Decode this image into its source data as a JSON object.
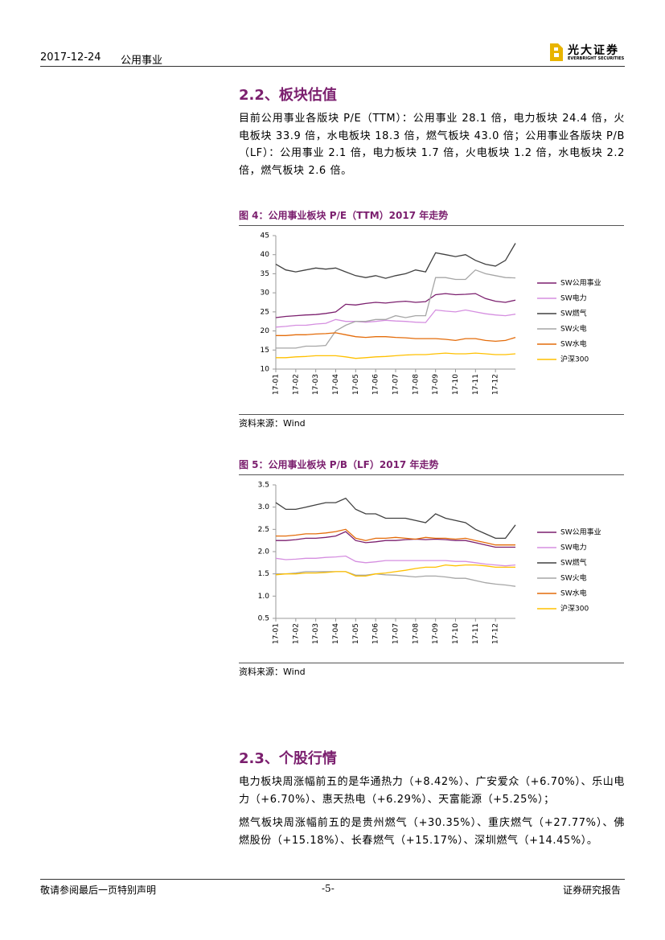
{
  "header": {
    "date": "2017-12-24",
    "sector": "公用事业",
    "logo_name": "光大证券",
    "logo_en": "EVERBRIGHT SECURITIES"
  },
  "section_2_2": {
    "title": "2.2、板块估值",
    "paragraph": "目前公用事业各版块 P/E（TTM）：公用事业 28.1 倍，电力板块 24.4 倍，火电板块 33.9 倍，水电板块 18.3 倍，燃气板块 43.0 倍；公用事业各版块 P/B（LF）：公用事业 2.1 倍，电力板块 1.7 倍，火电板块 1.2 倍，水电板块 2.2 倍，燃气板块 2.6 倍。"
  },
  "figures": [
    {
      "caption": "图 4：公用事业板块 P/E（TTM）2017 年走势",
      "source": "资料来源：Wind"
    },
    {
      "caption": "图 5：公用事业板块 P/B（LF）2017 年走势",
      "source": "资料来源：Wind"
    }
  ],
  "chart_data": [
    {
      "type": "line",
      "categories": [
        "17-01",
        null,
        "17-02",
        null,
        "17-03",
        null,
        "17-04",
        null,
        "17-05",
        null,
        "17-06",
        null,
        "17-07",
        null,
        "17-08",
        null,
        "17-09",
        null,
        "17-10",
        null,
        "17-11",
        null,
        "17-12",
        null,
        null
      ],
      "ylim": [
        10,
        45
      ],
      "yticks": [
        10,
        15,
        20,
        25,
        30,
        35,
        40,
        45
      ],
      "series": [
        {
          "name": "SW公用事业",
          "color": "#7b1f6e",
          "values": [
            23.5,
            23.8,
            24,
            24.2,
            24.3,
            24.6,
            25,
            27,
            26.8,
            27.2,
            27.5,
            27.3,
            27.6,
            27.8,
            27.5,
            27.7,
            29.5,
            29.8,
            29.5,
            29.6,
            29.8,
            28.5,
            27.8,
            27.5,
            28.1
          ]
        },
        {
          "name": "SW电力",
          "color": "#d58fe0",
          "values": [
            21,
            21.2,
            21.5,
            21.5,
            21.8,
            22,
            23,
            22.5,
            22.5,
            22.3,
            22.5,
            22.8,
            22.6,
            22.5,
            22.3,
            22.2,
            25.5,
            25.2,
            25,
            25.5,
            25,
            24.5,
            24.2,
            24,
            24.4
          ]
        },
        {
          "name": "SW燃气",
          "color": "#404040",
          "values": [
            37.5,
            36,
            35.5,
            36,
            36.5,
            36.2,
            36.5,
            35.5,
            34.5,
            34,
            34.5,
            33.8,
            34.5,
            35,
            36,
            35.5,
            40.5,
            40,
            39.5,
            40,
            38.5,
            37.5,
            37,
            38.5,
            43
          ]
        },
        {
          "name": "SW火电",
          "color": "#a6a6a6",
          "values": [
            15.5,
            15.5,
            15.5,
            16,
            16,
            16.2,
            20,
            21.5,
            22.5,
            22.5,
            23,
            23,
            24,
            23.5,
            24,
            24,
            34,
            34,
            33.5,
            33.5,
            36,
            35,
            34.5,
            34,
            33.9
          ]
        },
        {
          "name": "SW水电",
          "color": "#e46c0a",
          "values": [
            18.8,
            18.8,
            19,
            19,
            19.2,
            19.3,
            19.5,
            19,
            18.5,
            18.3,
            18.5,
            18.5,
            18.3,
            18.2,
            18,
            18,
            18,
            17.8,
            17.5,
            18,
            18,
            17.5,
            17.3,
            17.5,
            18.3
          ]
        },
        {
          "name": "沪深300",
          "color": "#ffc000",
          "values": [
            13,
            13,
            13.2,
            13.3,
            13.5,
            13.5,
            13.5,
            13.2,
            12.8,
            13,
            13.2,
            13.3,
            13.5,
            13.7,
            13.8,
            13.8,
            14,
            14.2,
            14,
            14,
            14.2,
            14,
            13.8,
            13.8,
            14
          ]
        }
      ]
    },
    {
      "type": "line",
      "categories": [
        "17-01",
        null,
        "17-02",
        null,
        "17-03",
        null,
        "17-04",
        null,
        "17-05",
        null,
        "17-06",
        null,
        "17-07",
        null,
        "17-08",
        null,
        "17-09",
        null,
        "17-10",
        null,
        "17-11",
        null,
        "17-12",
        null,
        null
      ],
      "ylim": [
        0.5,
        3.5
      ],
      "yticks": [
        0.5,
        {
          "value": 1,
          "label": "1.0"
        },
        1.5,
        {
          "value": 2,
          "label": "2.0"
        },
        2.5,
        {
          "value": 3,
          "label": "3.0"
        },
        3.5
      ],
      "series": [
        {
          "name": "SW公用事业",
          "color": "#7b1f6e",
          "values": [
            2.25,
            2.25,
            2.27,
            2.3,
            2.3,
            2.32,
            2.35,
            2.45,
            2.25,
            2.2,
            2.22,
            2.25,
            2.25,
            2.27,
            2.28,
            2.27,
            2.28,
            2.27,
            2.25,
            2.25,
            2.2,
            2.15,
            2.1,
            2.1,
            2.1
          ]
        },
        {
          "name": "SW电力",
          "color": "#d58fe0",
          "values": [
            1.85,
            1.82,
            1.83,
            1.85,
            1.85,
            1.87,
            1.88,
            1.9,
            1.78,
            1.75,
            1.77,
            1.8,
            1.8,
            1.8,
            1.8,
            1.8,
            1.8,
            1.8,
            1.78,
            1.78,
            1.75,
            1.72,
            1.7,
            1.68,
            1.7
          ]
        },
        {
          "name": "SW燃气",
          "color": "#404040",
          "values": [
            3.1,
            2.95,
            2.95,
            3.0,
            3.05,
            3.1,
            3.1,
            3.2,
            2.95,
            2.85,
            2.85,
            2.75,
            2.75,
            2.75,
            2.7,
            2.65,
            2.85,
            2.75,
            2.7,
            2.65,
            2.5,
            2.4,
            2.3,
            2.3,
            2.6
          ]
        },
        {
          "name": "SW火电",
          "color": "#a6a6a6",
          "values": [
            1.5,
            1.5,
            1.52,
            1.55,
            1.55,
            1.55,
            1.55,
            1.55,
            1.47,
            1.47,
            1.5,
            1.48,
            1.47,
            1.45,
            1.43,
            1.45,
            1.45,
            1.43,
            1.4,
            1.4,
            1.35,
            1.3,
            1.27,
            1.25,
            1.22
          ]
        },
        {
          "name": "SW水电",
          "color": "#e46c0a",
          "values": [
            2.35,
            2.35,
            2.37,
            2.4,
            2.4,
            2.42,
            2.45,
            2.5,
            2.3,
            2.25,
            2.3,
            2.3,
            2.32,
            2.3,
            2.28,
            2.32,
            2.3,
            2.3,
            2.28,
            2.3,
            2.25,
            2.2,
            2.15,
            2.15,
            2.15
          ]
        },
        {
          "name": "沪深300",
          "color": "#ffc000",
          "values": [
            1.48,
            1.5,
            1.5,
            1.52,
            1.52,
            1.53,
            1.55,
            1.55,
            1.45,
            1.45,
            1.5,
            1.52,
            1.55,
            1.58,
            1.62,
            1.65,
            1.65,
            1.7,
            1.68,
            1.7,
            1.7,
            1.68,
            1.65,
            1.65,
            1.65
          ]
        }
      ]
    }
  ],
  "section_2_3": {
    "title": "2.3、个股行情",
    "paragraphs": [
      "电力板块周涨幅前五的是华通热力（+8.42%）、广安爱众（+6.70%）、乐山电力（+6.70%）、惠天热电（+6.29%）、天富能源（+5.25%）；",
      "燃气板块周涨幅前五的是贵州燃气（+30.35%）、重庆燃气（+27.77%）、佛燃股份（+15.18%）、长春燃气（+15.17%）、深圳燃气（+14.45%）。"
    ]
  },
  "footer": {
    "disclaimer": "敬请参阅最后一页特别声明",
    "page": "-5-",
    "doc_type": "证券研究报告"
  }
}
